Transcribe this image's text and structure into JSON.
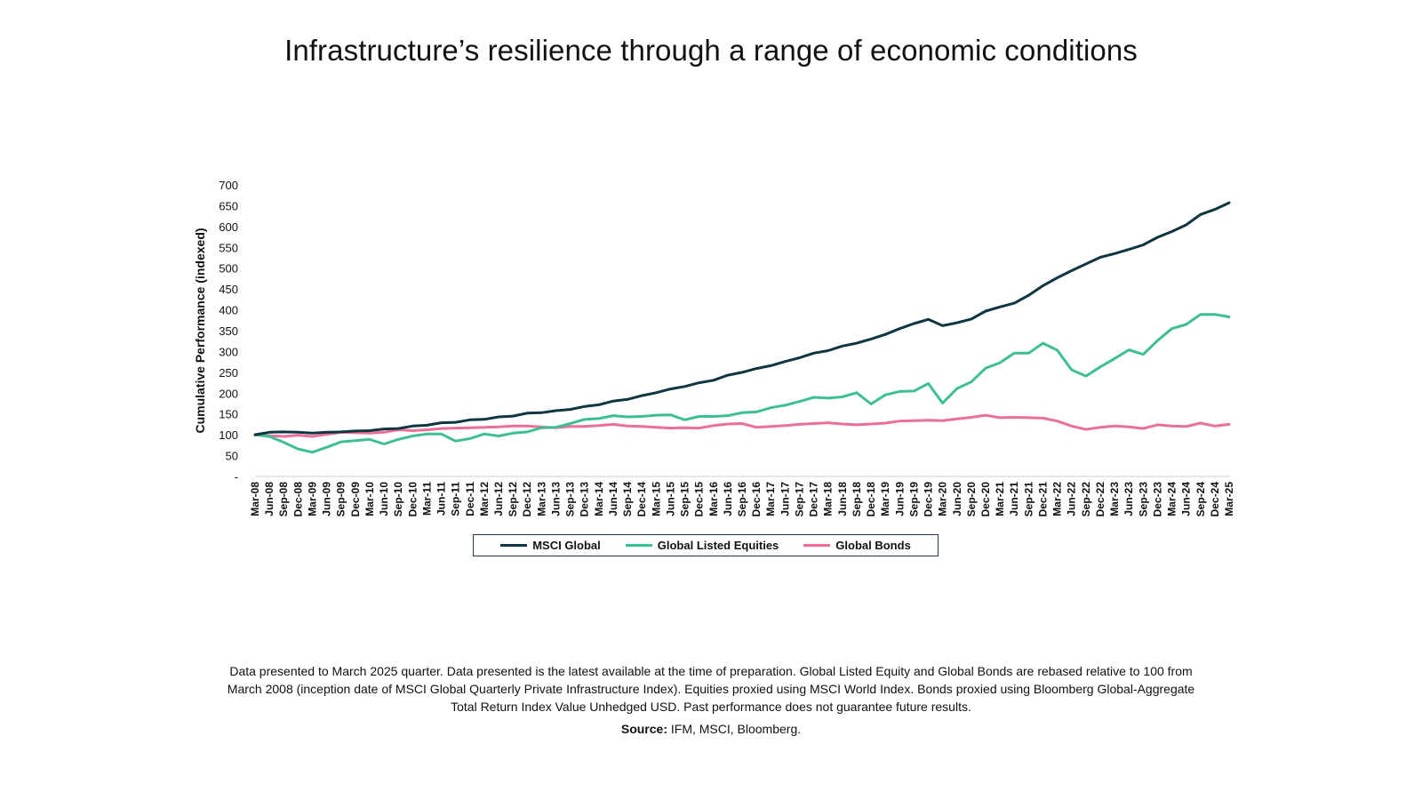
{
  "title": "Infrastructure’s resilience through a range of economic conditions",
  "footnote": "Data presented to March 2025 quarter. Data presented is the latest available at the time of preparation. Global Listed Equity and Global Bonds are rebased relative to 100 from March 2008 (inception date of MSCI Global Quarterly Private Infrastructure Index). Equities proxied using MSCI World Index. Bonds proxied using Bloomberg Global-Aggregate Total Return Index Value Unhedged USD. Past performance does not guarantee future results.",
  "source": {
    "label": "Source:",
    "text": " IFM, MSCI, Bloomberg."
  },
  "colors": {
    "msci": "#0d3640",
    "equities": "#3dbe93",
    "bonds": "#ec6f96"
  },
  "chart_data": {
    "type": "line",
    "title": "Infrastructure’s resilience through a range of economic conditions",
    "xlabel": "",
    "ylabel": "Cumulative Performance (indexed)",
    "ylim": [
      0,
      700
    ],
    "yticks": [
      "-",
      "50",
      "100",
      "150",
      "200",
      "250",
      "300",
      "350",
      "400",
      "450",
      "500",
      "550",
      "600",
      "650",
      "700"
    ],
    "legend_position": "bottom",
    "categories": [
      "Mar-08",
      "Jun-08",
      "Sep-08",
      "Dec-08",
      "Mar-09",
      "Jun-09",
      "Sep-09",
      "Dec-09",
      "Mar-10",
      "Jun-10",
      "Sep-10",
      "Dec-10",
      "Mar-11",
      "Jun-11",
      "Sep-11",
      "Dec-11",
      "Mar-12",
      "Jun-12",
      "Sep-12",
      "Dec-12",
      "Mar-13",
      "Jun-13",
      "Sep-13",
      "Dec-13",
      "Mar-14",
      "Jun-14",
      "Sep-14",
      "Dec-14",
      "Mar-15",
      "Jun-15",
      "Sep-15",
      "Dec-15",
      "Mar-16",
      "Jun-16",
      "Sep-16",
      "Dec-16",
      "Mar-17",
      "Jun-17",
      "Sep-17",
      "Dec-17",
      "Mar-18",
      "Jun-18",
      "Sep-18",
      "Dec-18",
      "Mar-19",
      "Jun-19",
      "Sep-19",
      "Dec-19",
      "Mar-20",
      "Jun-20",
      "Sep-20",
      "Dec-20",
      "Mar-21",
      "Jun-21",
      "Sep-21",
      "Dec-21",
      "Mar-22",
      "Jun-22",
      "Sep-22",
      "Dec-22",
      "Mar-23",
      "Jun-23",
      "Sep-23",
      "Dec-23",
      "Mar-24",
      "Jun-24",
      "Sep-24",
      "Dec-24",
      "Mar-25"
    ],
    "series": [
      {
        "name": "MSCI Global",
        "color": "#0d3640",
        "values": [
          100,
          106,
          107,
          106,
          104,
          106,
          107,
          109,
          110,
          114,
          115,
          121,
          123,
          129,
          130,
          136,
          137,
          143,
          145,
          152,
          153,
          158,
          161,
          168,
          172,
          181,
          185,
          194,
          201,
          210,
          216,
          225,
          231,
          243,
          250,
          259,
          266,
          276,
          285,
          296,
          302,
          313,
          320,
          330,
          341,
          355,
          367,
          377,
          362,
          369,
          378,
          397,
          407,
          416,
          435,
          458,
          477,
          494,
          510,
          526,
          535,
          545,
          556,
          574,
          588,
          604,
          629,
          641,
          657
        ]
      },
      {
        "name": "Global Listed Equities",
        "color": "#3dbe93",
        "values": [
          100,
          96,
          82,
          66,
          58,
          70,
          83,
          86,
          89,
          78,
          89,
          97,
          102,
          102,
          85,
          91,
          102,
          97,
          104,
          107,
          117,
          118,
          127,
          137,
          139,
          146,
          143,
          144,
          147,
          148,
          136,
          144,
          144,
          146,
          153,
          155,
          165,
          171,
          180,
          190,
          188,
          191,
          201,
          174,
          196,
          204,
          205,
          223,
          176,
          211,
          227,
          260,
          273,
          296,
          296,
          320,
          303,
          256,
          241,
          263,
          283,
          304,
          293,
          326,
          355,
          365,
          389,
          389,
          383
        ]
      },
      {
        "name": "Global Bonds",
        "color": "#ec6f96",
        "values": [
          100,
          98,
          96,
          99,
          96,
          101,
          106,
          105,
          104,
          106,
          112,
          110,
          112,
          115,
          116,
          117,
          118,
          119,
          121,
          121,
          119,
          117,
          120,
          120,
          122,
          125,
          121,
          120,
          118,
          116,
          117,
          116,
          122,
          126,
          127,
          118,
          120,
          122,
          125,
          127,
          129,
          126,
          124,
          126,
          128,
          133,
          134,
          135,
          134,
          138,
          142,
          147,
          141,
          142,
          141,
          140,
          133,
          121,
          113,
          118,
          121,
          119,
          115,
          124,
          121,
          120,
          128,
          121,
          125
        ]
      }
    ]
  }
}
